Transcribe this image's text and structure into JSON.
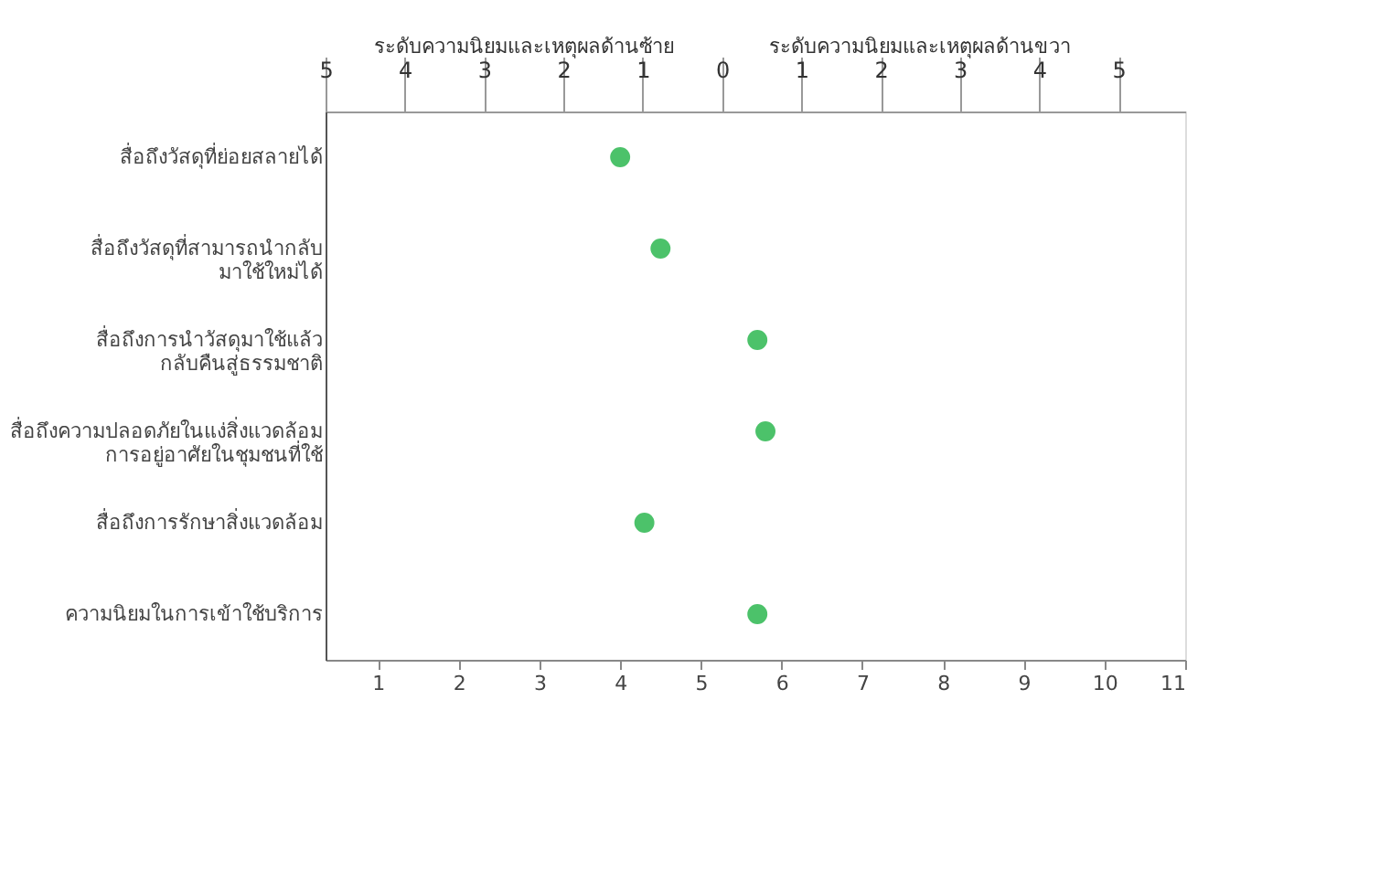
{
  "chart_data": {
    "type": "scatter",
    "categories": [
      "สื่อถึงวัสดุที่ย่อยสลายได้",
      "สื่อถึงวัสดุที่สามารถนำกลับ\nมาใช้ใหม่ได้",
      "สื่อถึงการนำวัสดุมาใช้แล้ว\nกลับคืนสู่ธรรมชาติ",
      "สื่อถึงความปลอดภัยในแง่สิ่งแวดล้อม\nการอยู่อาศัยในชุมชนที่ใช้",
      "สื่อถึงการรักษาสิ่งแวดล้อม",
      "ความนิยมในการเข้าใช้บริการ"
    ],
    "orientation": "horizontal",
    "series": [
      {
        "color": "#4cc26a",
        "values": [
          4.0,
          4.5,
          5.7,
          5.8,
          4.3,
          5.7
        ]
      }
    ],
    "xlim": [
      0.35,
      11
    ],
    "xticks": [
      1,
      2,
      3,
      4,
      5,
      6,
      7,
      8,
      9,
      10,
      11
    ],
    "x2lim": [
      -5,
      5.84
    ],
    "x2ticks": [
      {
        "value": -5,
        "label": "5"
      },
      {
        "value": -4,
        "label": "4"
      },
      {
        "value": -3,
        "label": "3"
      },
      {
        "value": -2,
        "label": "2"
      },
      {
        "value": -1,
        "label": "1"
      },
      0,
      1,
      2,
      3,
      4,
      5
    ],
    "annotations": [
      "ระดับความนิยมและเหตุผลด้านซ้าย",
      "ระดับความนิยมและเหตุผลด้านขวา"
    ],
    "grid": false
  }
}
